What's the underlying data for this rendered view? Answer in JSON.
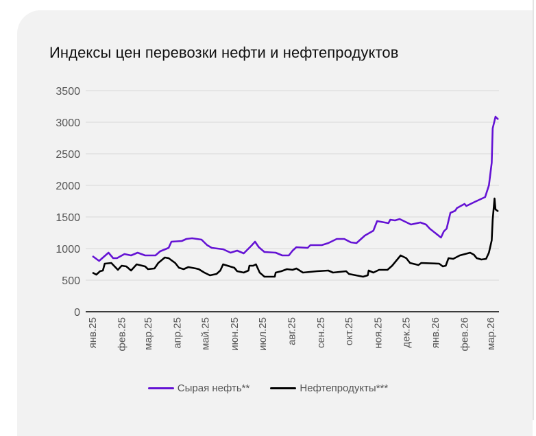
{
  "chart_data": {
    "type": "line",
    "title": "Индексы цен перевозки нефти и нефтепродуктов",
    "xlabel": "",
    "ylabel": "",
    "ylim": [
      0,
      3500
    ],
    "yticks": [
      0,
      500,
      1000,
      1500,
      2000,
      2500,
      3000,
      3500
    ],
    "xlim": [
      "2025-01-01",
      "2026-03-09"
    ],
    "xticks": [
      {
        "date": "2025-01-01",
        "label": "янв.25"
      },
      {
        "date": "2025-02-01",
        "label": "фев.25"
      },
      {
        "date": "2025-03-01",
        "label": "мар.25"
      },
      {
        "date": "2025-04-01",
        "label": "апр.25"
      },
      {
        "date": "2025-05-01",
        "label": "май.25"
      },
      {
        "date": "2025-06-01",
        "label": "июн.25"
      },
      {
        "date": "2025-07-01",
        "label": "июл.25"
      },
      {
        "date": "2025-08-01",
        "label": "авг.25"
      },
      {
        "date": "2025-09-01",
        "label": "сен.25"
      },
      {
        "date": "2025-10-01",
        "label": "окт.25"
      },
      {
        "date": "2025-11-01",
        "label": "ноя.25"
      },
      {
        "date": "2025-12-01",
        "label": "дек.25"
      },
      {
        "date": "2026-01-01",
        "label": "янв.26"
      },
      {
        "date": "2026-02-01",
        "label": "фев.26"
      },
      {
        "date": "2026-03-01",
        "label": "мар.26"
      }
    ],
    "grid": true,
    "legend_position": "bottom",
    "series": [
      {
        "name": "Сырая нефть**",
        "color": "#6412d4",
        "points": [
          [
            "2025-01-01",
            880
          ],
          [
            "2025-01-08",
            804
          ],
          [
            "2025-01-18",
            935
          ],
          [
            "2025-01-23",
            848
          ],
          [
            "2025-01-27",
            848
          ],
          [
            "2025-02-04",
            913
          ],
          [
            "2025-02-11",
            891
          ],
          [
            "2025-02-18",
            935
          ],
          [
            "2025-02-26",
            891
          ],
          [
            "2025-03-09",
            891
          ],
          [
            "2025-03-14",
            957
          ],
          [
            "2025-03-23",
            1011
          ],
          [
            "2025-03-26",
            1109
          ],
          [
            "2025-04-06",
            1120
          ],
          [
            "2025-04-11",
            1152
          ],
          [
            "2025-04-17",
            1163
          ],
          [
            "2025-04-27",
            1141
          ],
          [
            "2025-05-03",
            1054
          ],
          [
            "2025-05-08",
            1011
          ],
          [
            "2025-05-20",
            989
          ],
          [
            "2025-05-28",
            935
          ],
          [
            "2025-06-04",
            967
          ],
          [
            "2025-06-11",
            924
          ],
          [
            "2025-06-19",
            1043
          ],
          [
            "2025-06-23",
            1109
          ],
          [
            "2025-06-27",
            1022
          ],
          [
            "2025-07-03",
            946
          ],
          [
            "2025-07-15",
            935
          ],
          [
            "2025-07-22",
            891
          ],
          [
            "2025-07-29",
            891
          ],
          [
            "2025-08-02",
            967
          ],
          [
            "2025-08-06",
            1022
          ],
          [
            "2025-08-18",
            1011
          ],
          [
            "2025-08-21",
            1054
          ],
          [
            "2025-09-02",
            1054
          ],
          [
            "2025-09-09",
            1087
          ],
          [
            "2025-09-18",
            1152
          ],
          [
            "2025-09-26",
            1152
          ],
          [
            "2025-10-03",
            1098
          ],
          [
            "2025-10-09",
            1087
          ],
          [
            "2025-10-18",
            1207
          ],
          [
            "2025-10-27",
            1283
          ],
          [
            "2025-10-31",
            1435
          ],
          [
            "2025-11-12",
            1402
          ],
          [
            "2025-11-14",
            1457
          ],
          [
            "2025-11-19",
            1446
          ],
          [
            "2025-11-24",
            1467
          ],
          [
            "2025-12-06",
            1380
          ],
          [
            "2025-12-16",
            1413
          ],
          [
            "2025-12-22",
            1380
          ],
          [
            "2025-12-26",
            1315
          ],
          [
            "2026-01-07",
            1174
          ],
          [
            "2026-01-10",
            1272
          ],
          [
            "2026-01-13",
            1315
          ],
          [
            "2026-01-17",
            1565
          ],
          [
            "2026-01-22",
            1598
          ],
          [
            "2026-01-24",
            1641
          ],
          [
            "2026-02-01",
            1707
          ],
          [
            "2026-02-03",
            1674
          ],
          [
            "2026-02-12",
            1739
          ],
          [
            "2026-02-23",
            1815
          ],
          [
            "2026-02-27",
            2000
          ],
          [
            "2026-03-02",
            2359
          ],
          [
            "2026-03-03",
            2902
          ],
          [
            "2026-03-06",
            3087
          ],
          [
            "2026-03-09",
            3043
          ]
        ]
      },
      {
        "name": "Нефтепродукты***",
        "color": "#000000",
        "points": [
          [
            "2025-01-01",
            620
          ],
          [
            "2025-01-05",
            587
          ],
          [
            "2025-01-09",
            641
          ],
          [
            "2025-01-12",
            652
          ],
          [
            "2025-01-14",
            761
          ],
          [
            "2025-01-21",
            772
          ],
          [
            "2025-01-28",
            663
          ],
          [
            "2025-02-01",
            728
          ],
          [
            "2025-02-06",
            717
          ],
          [
            "2025-02-11",
            652
          ],
          [
            "2025-02-17",
            750
          ],
          [
            "2025-02-26",
            717
          ],
          [
            "2025-03-01",
            674
          ],
          [
            "2025-03-08",
            685
          ],
          [
            "2025-03-12",
            772
          ],
          [
            "2025-03-19",
            859
          ],
          [
            "2025-03-23",
            848
          ],
          [
            "2025-03-30",
            772
          ],
          [
            "2025-04-03",
            696
          ],
          [
            "2025-04-08",
            674
          ],
          [
            "2025-04-13",
            707
          ],
          [
            "2025-04-21",
            685
          ],
          [
            "2025-04-24",
            674
          ],
          [
            "2025-04-30",
            620
          ],
          [
            "2025-05-06",
            576
          ],
          [
            "2025-05-13",
            598
          ],
          [
            "2025-05-17",
            652
          ],
          [
            "2025-05-20",
            750
          ],
          [
            "2025-06-01",
            696
          ],
          [
            "2025-06-04",
            641
          ],
          [
            "2025-06-11",
            620
          ],
          [
            "2025-06-16",
            652
          ],
          [
            "2025-06-17",
            728
          ],
          [
            "2025-06-21",
            728
          ],
          [
            "2025-06-24",
            750
          ],
          [
            "2025-06-28",
            620
          ],
          [
            "2025-07-03",
            554
          ],
          [
            "2025-07-14",
            554
          ],
          [
            "2025-07-15",
            620
          ],
          [
            "2025-07-21",
            641
          ],
          [
            "2025-07-27",
            674
          ],
          [
            "2025-08-02",
            663
          ],
          [
            "2025-08-06",
            685
          ],
          [
            "2025-08-13",
            620
          ],
          [
            "2025-08-28",
            641
          ],
          [
            "2025-09-09",
            652
          ],
          [
            "2025-09-14",
            620
          ],
          [
            "2025-09-28",
            641
          ],
          [
            "2025-10-01",
            598
          ],
          [
            "2025-10-16",
            554
          ],
          [
            "2025-10-21",
            576
          ],
          [
            "2025-10-22",
            652
          ],
          [
            "2025-10-27",
            620
          ],
          [
            "2025-11-02",
            663
          ],
          [
            "2025-11-11",
            663
          ],
          [
            "2025-11-16",
            728
          ],
          [
            "2025-11-25",
            891
          ],
          [
            "2025-12-01",
            848
          ],
          [
            "2025-12-05",
            772
          ],
          [
            "2025-12-14",
            739
          ],
          [
            "2025-12-17",
            772
          ],
          [
            "2026-01-05",
            761
          ],
          [
            "2026-01-09",
            717
          ],
          [
            "2026-01-12",
            728
          ],
          [
            "2026-01-15",
            848
          ],
          [
            "2026-01-20",
            837
          ],
          [
            "2026-01-27",
            891
          ],
          [
            "2026-02-07",
            935
          ],
          [
            "2026-02-11",
            902
          ],
          [
            "2026-02-14",
            848
          ],
          [
            "2026-02-19",
            826
          ],
          [
            "2026-02-24",
            837
          ],
          [
            "2026-02-27",
            935
          ],
          [
            "2026-03-02",
            1130
          ],
          [
            "2026-03-03",
            1457
          ],
          [
            "2026-03-05",
            1793
          ],
          [
            "2026-03-06",
            1620
          ],
          [
            "2026-03-09",
            1587
          ]
        ]
      }
    ]
  }
}
